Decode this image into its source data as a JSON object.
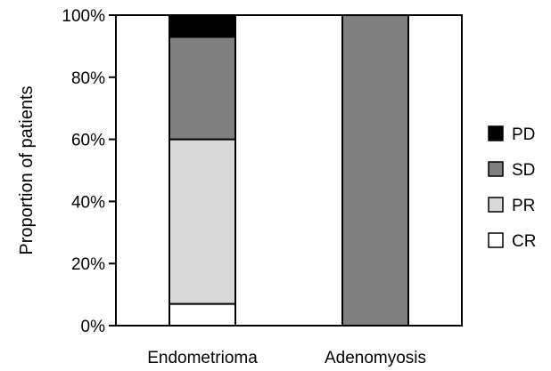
{
  "chart_data": {
    "type": "bar",
    "stacked": true,
    "categories": [
      "Endometrioma",
      "Adenomyosis"
    ],
    "series": [
      {
        "name": "CR",
        "values": [
          7,
          0
        ],
        "color": "#ffffff"
      },
      {
        "name": "PR",
        "values": [
          53,
          0
        ],
        "color": "#d9d9d9"
      },
      {
        "name": "SD",
        "values": [
          33,
          100
        ],
        "color": "#7f7f7f"
      },
      {
        "name": "PD",
        "values": [
          7,
          0
        ],
        "color": "#000000"
      }
    ],
    "title": "",
    "xlabel": "",
    "ylabel": "Proportion of patients",
    "ylim": [
      0,
      100
    ],
    "yticks": [
      "0%",
      "20%",
      "40%",
      "60%",
      "80%",
      "100%"
    ],
    "legend_order": [
      "PD",
      "SD",
      "PR",
      "CR"
    ],
    "legend_position": "right",
    "grid": false
  }
}
